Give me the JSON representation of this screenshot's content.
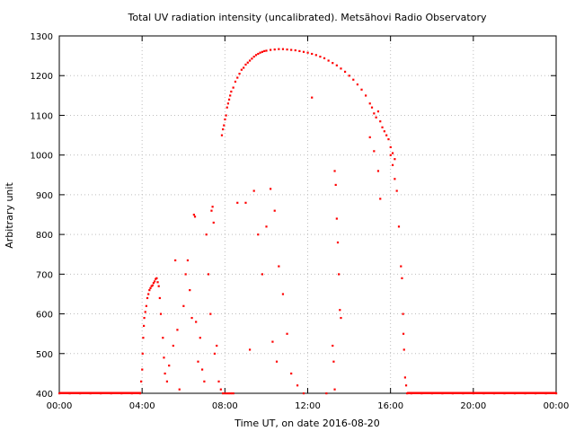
{
  "chart_data": {
    "type": "scatter",
    "title": "Total UV radiation intensity (uncalibrated). Metsähovi Radio Observatory",
    "xlabel": "Time UT, on date 2016-08-20",
    "ylabel": "Arbitrary unit",
    "x_unit": "hours UT",
    "xlim": [
      0,
      24
    ],
    "ylim": [
      400,
      1300
    ],
    "x_ticks": [
      {
        "value": 0,
        "label": "00:00"
      },
      {
        "value": 4,
        "label": "04:00"
      },
      {
        "value": 8,
        "label": "08:00"
      },
      {
        "value": 12,
        "label": "12:00"
      },
      {
        "value": 16,
        "label": "16:00"
      },
      {
        "value": 20,
        "label": "20:00"
      },
      {
        "value": 24,
        "label": "00:00"
      }
    ],
    "y_ticks": [
      400,
      500,
      600,
      700,
      800,
      900,
      1000,
      1100,
      1200,
      1300
    ],
    "grid": true,
    "legend": "none",
    "marker_color": "#ff0000",
    "series": [
      {
        "points": [
          [
            0,
            400
          ],
          [
            0.5,
            400
          ],
          [
            1,
            400
          ],
          [
            1.5,
            400
          ],
          [
            2,
            400
          ],
          [
            2.5,
            400
          ],
          [
            3,
            400
          ],
          [
            3.5,
            400
          ],
          [
            3.9,
            400
          ],
          [
            3.95,
            430
          ],
          [
            4.0,
            460
          ],
          [
            4.02,
            500
          ],
          [
            4.05,
            540
          ],
          [
            4.08,
            570
          ],
          [
            4.1,
            590
          ],
          [
            4.15,
            605
          ],
          [
            4.2,
            620
          ],
          [
            4.25,
            640
          ],
          [
            4.3,
            650
          ],
          [
            4.35,
            660
          ],
          [
            4.4,
            665
          ],
          [
            4.45,
            670
          ],
          [
            4.5,
            672
          ],
          [
            4.55,
            678
          ],
          [
            4.6,
            682
          ],
          [
            4.65,
            688
          ],
          [
            4.7,
            690
          ],
          [
            4.75,
            680
          ],
          [
            4.8,
            670
          ],
          [
            4.85,
            640
          ],
          [
            4.9,
            600
          ],
          [
            5.0,
            540
          ],
          [
            5.05,
            490
          ],
          [
            5.1,
            450
          ],
          [
            5.2,
            430
          ],
          [
            5.3,
            470
          ],
          [
            5.5,
            520
          ],
          [
            5.6,
            735
          ],
          [
            5.7,
            560
          ],
          [
            5.8,
            410
          ],
          [
            6.0,
            620
          ],
          [
            6.1,
            700
          ],
          [
            6.2,
            735
          ],
          [
            6.3,
            660
          ],
          [
            6.4,
            590
          ],
          [
            6.5,
            850
          ],
          [
            6.55,
            845
          ],
          [
            6.6,
            580
          ],
          [
            6.7,
            480
          ],
          [
            6.8,
            540
          ],
          [
            6.9,
            460
          ],
          [
            7.0,
            430
          ],
          [
            7.1,
            800
          ],
          [
            7.2,
            700
          ],
          [
            7.3,
            600
          ],
          [
            7.35,
            860
          ],
          [
            7.4,
            870
          ],
          [
            7.45,
            830
          ],
          [
            7.5,
            500
          ],
          [
            7.6,
            520
          ],
          [
            7.7,
            430
          ],
          [
            7.8,
            410
          ],
          [
            7.9,
            400
          ],
          [
            8.0,
            400
          ],
          [
            8.1,
            400
          ],
          [
            8.2,
            400
          ],
          [
            8.3,
            400
          ],
          [
            8.4,
            400
          ],
          [
            7.85,
            1050
          ],
          [
            7.9,
            1065
          ],
          [
            7.95,
            1075
          ],
          [
            8.0,
            1090
          ],
          [
            8.05,
            1100
          ],
          [
            8.1,
            1120
          ],
          [
            8.15,
            1130
          ],
          [
            8.2,
            1140
          ],
          [
            8.25,
            1150
          ],
          [
            8.3,
            1160
          ],
          [
            8.4,
            1170
          ],
          [
            8.5,
            1185
          ],
          [
            8.6,
            1195
          ],
          [
            8.7,
            1205
          ],
          [
            8.8,
            1215
          ],
          [
            8.9,
            1220
          ],
          [
            9.0,
            1228
          ],
          [
            9.1,
            1233
          ],
          [
            9.2,
            1238
          ],
          [
            9.3,
            1243
          ],
          [
            9.4,
            1248
          ],
          [
            9.5,
            1252
          ],
          [
            9.6,
            1255
          ],
          [
            9.7,
            1258
          ],
          [
            9.8,
            1260
          ],
          [
            9.9,
            1262
          ],
          [
            10.0,
            1263
          ],
          [
            10.2,
            1265
          ],
          [
            10.4,
            1266
          ],
          [
            10.6,
            1267
          ],
          [
            10.8,
            1267
          ],
          [
            11.0,
            1266
          ],
          [
            11.2,
            1265
          ],
          [
            11.4,
            1264
          ],
          [
            11.6,
            1262
          ],
          [
            11.8,
            1260
          ],
          [
            12.0,
            1258
          ],
          [
            12.2,
            1255
          ],
          [
            12.4,
            1252
          ],
          [
            12.6,
            1248
          ],
          [
            12.8,
            1244
          ],
          [
            13.0,
            1238
          ],
          [
            13.2,
            1232
          ],
          [
            13.4,
            1226
          ],
          [
            13.6,
            1218
          ],
          [
            13.8,
            1210
          ],
          [
            14.0,
            1200
          ],
          [
            14.2,
            1190
          ],
          [
            14.4,
            1178
          ],
          [
            14.6,
            1165
          ],
          [
            14.8,
            1150
          ],
          [
            15.0,
            1130
          ],
          [
            15.1,
            1120
          ],
          [
            15.2,
            1105
          ],
          [
            15.3,
            1095
          ],
          [
            15.4,
            1110
          ],
          [
            15.5,
            1085
          ],
          [
            15.6,
            1070
          ],
          [
            15.7,
            1060
          ],
          [
            15.8,
            1050
          ],
          [
            15.9,
            1040
          ],
          [
            16.0,
            1020
          ],
          [
            16.1,
            1005
          ],
          [
            16.2,
            990
          ],
          [
            8.6,
            880
          ],
          [
            9.0,
            880
          ],
          [
            9.4,
            910
          ],
          [
            9.6,
            800
          ],
          [
            9.8,
            700
          ],
          [
            10.0,
            820
          ],
          [
            10.2,
            915
          ],
          [
            10.4,
            860
          ],
          [
            10.6,
            720
          ],
          [
            10.8,
            650
          ],
          [
            11.0,
            550
          ],
          [
            11.2,
            450
          ],
          [
            9.2,
            510
          ],
          [
            10.3,
            530
          ],
          [
            10.5,
            480
          ],
          [
            11.5,
            420
          ],
          [
            11.8,
            400
          ],
          [
            12.2,
            1145
          ],
          [
            13.3,
            960
          ],
          [
            13.35,
            925
          ],
          [
            13.4,
            840
          ],
          [
            13.45,
            780
          ],
          [
            13.5,
            700
          ],
          [
            13.55,
            610
          ],
          [
            13.6,
            590
          ],
          [
            13.2,
            520
          ],
          [
            13.25,
            480
          ],
          [
            13.3,
            410
          ],
          [
            12.9,
            400
          ],
          [
            15.0,
            1045
          ],
          [
            15.2,
            1010
          ],
          [
            15.4,
            960
          ],
          [
            15.5,
            890
          ],
          [
            16.0,
            1000
          ],
          [
            16.1,
            975
          ],
          [
            16.2,
            940
          ],
          [
            16.3,
            910
          ],
          [
            16.4,
            820
          ],
          [
            16.5,
            720
          ],
          [
            16.55,
            690
          ],
          [
            16.6,
            600
          ],
          [
            16.62,
            550
          ],
          [
            16.65,
            510
          ],
          [
            16.7,
            440
          ],
          [
            16.75,
            420
          ],
          [
            16.8,
            400
          ],
          [
            17,
            400
          ],
          [
            17.5,
            400
          ],
          [
            18,
            400
          ],
          [
            18.5,
            400
          ],
          [
            19,
            400
          ],
          [
            19.5,
            400
          ],
          [
            20,
            400
          ],
          [
            20.5,
            400
          ],
          [
            21,
            400
          ],
          [
            21.5,
            400
          ],
          [
            22,
            400
          ],
          [
            22.5,
            400
          ],
          [
            23,
            400
          ],
          [
            23.5,
            400
          ],
          [
            24,
            400
          ]
        ]
      }
    ]
  }
}
